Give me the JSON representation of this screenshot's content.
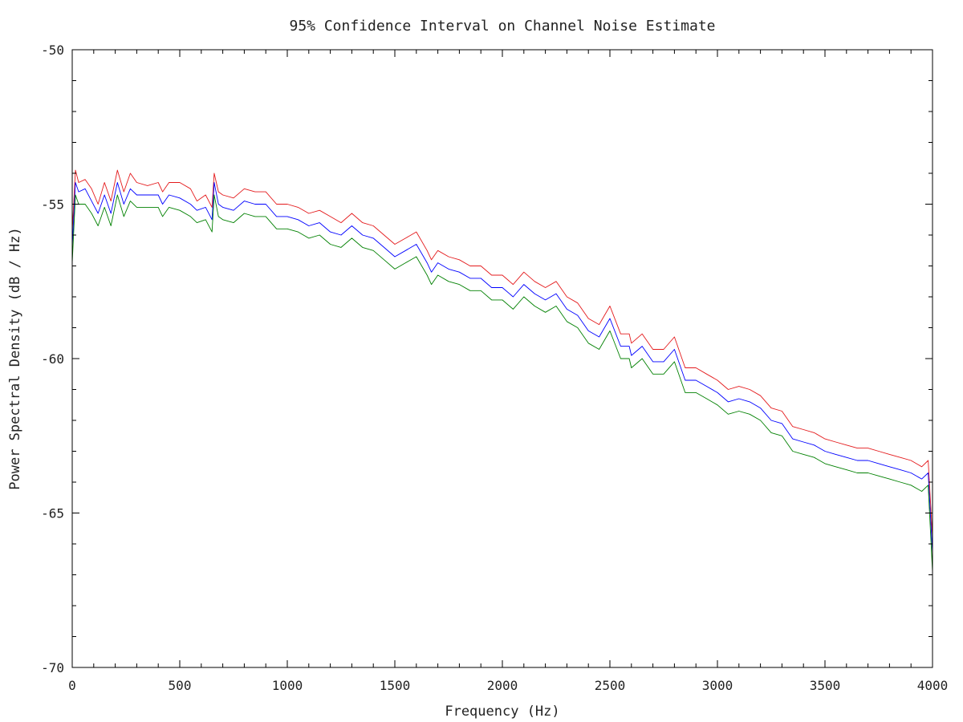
{
  "chart_data": {
    "type": "line",
    "title": "95% Confidence Interval on Channel Noise Estimate",
    "xlabel": "Frequency (Hz)",
    "ylabel": "Power Spectral Density (dB / Hz)",
    "xlim": [
      0,
      4000
    ],
    "ylim": [
      -70,
      -50
    ],
    "xticks": [
      0,
      500,
      1000,
      1500,
      2000,
      2500,
      3000,
      3500,
      4000
    ],
    "xtick_labels": [
      "0",
      "500",
      "1000",
      "1500",
      "2000",
      "2500",
      "3000",
      "3500",
      "4000"
    ],
    "yticks": [
      -70,
      -65,
      -60,
      -55,
      -50
    ],
    "ytick_labels": [
      "-70",
      "-65",
      "-60",
      "-55",
      "-50"
    ],
    "grid": false,
    "legend": "none",
    "x": [
      0,
      15,
      30,
      60,
      90,
      120,
      150,
      180,
      210,
      240,
      270,
      300,
      350,
      400,
      420,
      450,
      500,
      550,
      580,
      620,
      650,
      660,
      680,
      700,
      750,
      800,
      850,
      900,
      950,
      1000,
      1050,
      1100,
      1150,
      1200,
      1250,
      1300,
      1350,
      1400,
      1450,
      1500,
      1550,
      1600,
      1650,
      1670,
      1700,
      1750,
      1800,
      1850,
      1900,
      1950,
      2000,
      2050,
      2100,
      2150,
      2200,
      2250,
      2300,
      2350,
      2400,
      2450,
      2500,
      2550,
      2590,
      2600,
      2650,
      2700,
      2750,
      2800,
      2850,
      2900,
      2950,
      3000,
      3050,
      3100,
      3150,
      3200,
      3250,
      3300,
      3350,
      3400,
      3450,
      3500,
      3550,
      3600,
      3650,
      3700,
      3750,
      3800,
      3850,
      3900,
      3950,
      3980,
      4000
    ],
    "series": [
      {
        "color": "#e41a1c",
        "values": [
          -55.9,
          -53.9,
          -54.3,
          -54.2,
          -54.5,
          -55.0,
          -54.3,
          -54.9,
          -53.9,
          -54.6,
          -54.0,
          -54.3,
          -54.4,
          -54.3,
          -54.6,
          -54.3,
          -54.3,
          -54.5,
          -54.9,
          -54.7,
          -55.1,
          -54.0,
          -54.6,
          -54.7,
          -54.8,
          -54.5,
          -54.6,
          -54.6,
          -55.0,
          -55.0,
          -55.1,
          -55.3,
          -55.2,
          -55.4,
          -55.6,
          -55.3,
          -55.6,
          -55.7,
          -56.0,
          -56.3,
          -56.1,
          -55.9,
          -56.5,
          -56.8,
          -56.5,
          -56.7,
          -56.8,
          -57.0,
          -57.0,
          -57.3,
          -57.3,
          -57.6,
          -57.2,
          -57.5,
          -57.7,
          -57.5,
          -58.0,
          -58.2,
          -58.7,
          -58.9,
          -58.3,
          -59.2,
          -59.2,
          -59.5,
          -59.2,
          -59.7,
          -59.7,
          -59.3,
          -60.3,
          -60.3,
          -60.5,
          -60.7,
          -61.0,
          -60.9,
          -61.0,
          -61.2,
          -61.6,
          -61.7,
          -62.2,
          -62.3,
          -62.4,
          -62.6,
          -62.7,
          -62.8,
          -62.9,
          -62.9,
          -63.0,
          -63.1,
          -63.2,
          -63.3,
          -63.5,
          -63.3,
          -65.8
        ]
      },
      {
        "color": "#0000ff",
        "values": [
          -56.4,
          -54.3,
          -54.6,
          -54.5,
          -54.9,
          -55.3,
          -54.7,
          -55.3,
          -54.3,
          -55.0,
          -54.5,
          -54.7,
          -54.7,
          -54.7,
          -55.0,
          -54.7,
          -54.8,
          -55.0,
          -55.2,
          -55.1,
          -55.5,
          -54.3,
          -55.0,
          -55.1,
          -55.2,
          -54.9,
          -55.0,
          -55.0,
          -55.4,
          -55.4,
          -55.5,
          -55.7,
          -55.6,
          -55.9,
          -56.0,
          -55.7,
          -56.0,
          -56.1,
          -56.4,
          -56.7,
          -56.5,
          -56.3,
          -56.9,
          -57.2,
          -56.9,
          -57.1,
          -57.2,
          -57.4,
          -57.4,
          -57.7,
          -57.7,
          -58.0,
          -57.6,
          -57.9,
          -58.1,
          -57.9,
          -58.4,
          -58.6,
          -59.1,
          -59.3,
          -58.7,
          -59.6,
          -59.6,
          -59.9,
          -59.6,
          -60.1,
          -60.1,
          -59.7,
          -60.7,
          -60.7,
          -60.9,
          -61.1,
          -61.4,
          -61.3,
          -61.4,
          -61.6,
          -62.0,
          -62.1,
          -62.6,
          -62.7,
          -62.8,
          -63.0,
          -63.1,
          -63.2,
          -63.3,
          -63.3,
          -63.4,
          -63.5,
          -63.6,
          -63.7,
          -63.9,
          -63.7,
          -66.3
        ]
      },
      {
        "color": "#008000",
        "values": [
          -56.9,
          -54.7,
          -55.0,
          -55.0,
          -55.3,
          -55.7,
          -55.1,
          -55.7,
          -54.7,
          -55.4,
          -54.9,
          -55.1,
          -55.1,
          -55.1,
          -55.4,
          -55.1,
          -55.2,
          -55.4,
          -55.6,
          -55.5,
          -55.9,
          -54.7,
          -55.4,
          -55.5,
          -55.6,
          -55.3,
          -55.4,
          -55.4,
          -55.8,
          -55.8,
          -55.9,
          -56.1,
          -56.0,
          -56.3,
          -56.4,
          -56.1,
          -56.4,
          -56.5,
          -56.8,
          -57.1,
          -56.9,
          -56.7,
          -57.3,
          -57.6,
          -57.3,
          -57.5,
          -57.6,
          -57.8,
          -57.8,
          -58.1,
          -58.1,
          -58.4,
          -58.0,
          -58.3,
          -58.5,
          -58.3,
          -58.8,
          -59.0,
          -59.5,
          -59.7,
          -59.1,
          -60.0,
          -60.0,
          -60.3,
          -60.0,
          -60.5,
          -60.5,
          -60.1,
          -61.1,
          -61.1,
          -61.3,
          -61.5,
          -61.8,
          -61.7,
          -61.8,
          -62.0,
          -62.4,
          -62.5,
          -63.0,
          -63.1,
          -63.2,
          -63.4,
          -63.5,
          -63.6,
          -63.7,
          -63.7,
          -63.8,
          -63.9,
          -64.0,
          -64.1,
          -64.3,
          -64.1,
          -66.9
        ]
      }
    ]
  }
}
